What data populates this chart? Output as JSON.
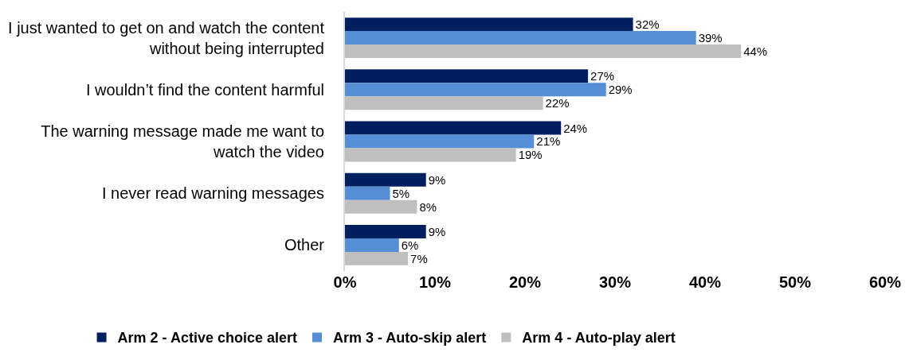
{
  "chart_data": {
    "type": "bar",
    "orientation": "horizontal",
    "categories": [
      "I just wanted to get on and watch the content\nwithout being interrupted",
      "I wouldn’t find the content harmful",
      "The warning message made me want to\nwatch the video",
      "I never read warning messages",
      "Other"
    ],
    "series": [
      {
        "name": "Arm 2 - Active choice alert",
        "color": "#001f5f",
        "values": [
          32,
          27,
          24,
          9,
          9
        ],
        "value_labels": [
          "32%",
          "27%",
          "24%",
          "9%",
          "9%"
        ]
      },
      {
        "name": "Arm 3 - Auto-skip alert",
        "color": "#558ed5",
        "values": [
          39,
          29,
          21,
          5,
          6
        ],
        "value_labels": [
          "39%",
          "29%",
          "21%",
          "5%",
          "6%"
        ]
      },
      {
        "name": "Arm 4 - Auto-play alert",
        "color": "#bfbfbf",
        "values": [
          44,
          22,
          19,
          8,
          7
        ],
        "value_labels": [
          "44%",
          "22%",
          "19%",
          "8%",
          "7%"
        ]
      }
    ],
    "xlim": [
      0,
      60
    ],
    "xticks": [
      {
        "value": 0,
        "label": "0%"
      },
      {
        "value": 10,
        "label": "10%"
      },
      {
        "value": 20,
        "label": "20%"
      },
      {
        "value": 30,
        "label": "30%"
      },
      {
        "value": 40,
        "label": "40%"
      },
      {
        "value": 50,
        "label": "50%"
      },
      {
        "value": 60,
        "label": "60%"
      }
    ],
    "legend": "bottom"
  }
}
